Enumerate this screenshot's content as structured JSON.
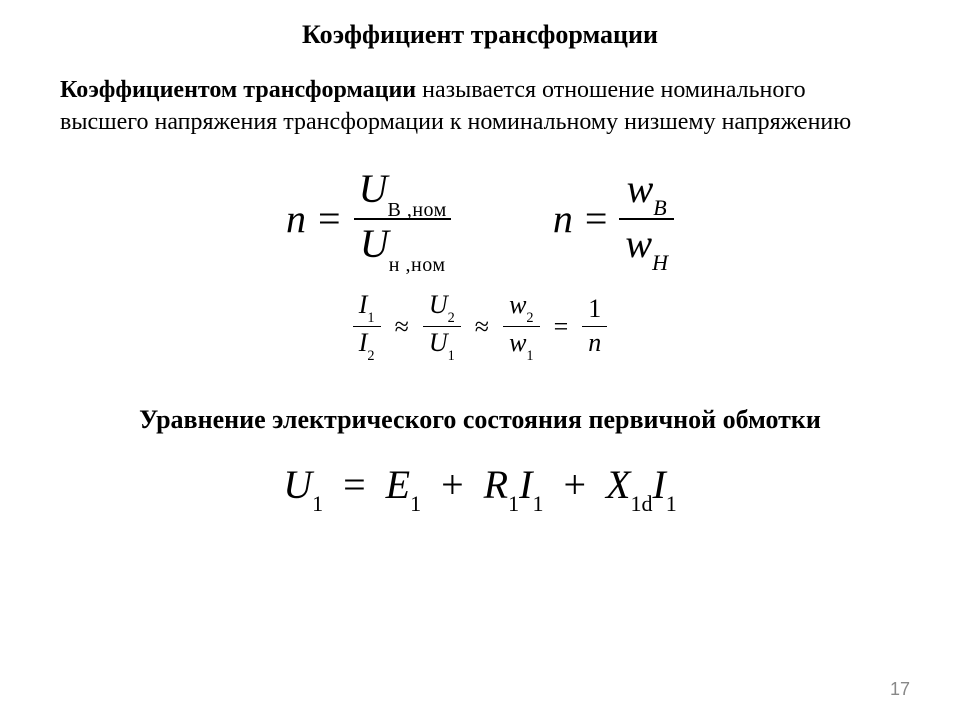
{
  "title": "Коэффициент трансформации",
  "definition": {
    "lead": "Коэффициентом трансформации",
    "body": " называется отношение номинального высшего напряжения трансформации к номинальному низшему напряжению"
  },
  "formula1": {
    "lhs": "n",
    "eq": "=",
    "num_var": "U",
    "num_sub": "В ,ном",
    "den_var": "U",
    "den_sub": "н ,ном"
  },
  "formula2": {
    "lhs": "n",
    "eq": "=",
    "num_var": "w",
    "num_sub": "B",
    "den_var": "w",
    "den_sub": "H"
  },
  "relation": {
    "f1_num": "I",
    "f1_num_sub": "1",
    "f1_den": "I",
    "f1_den_sub": "2",
    "op1": "≈",
    "f2_num": "U",
    "f2_num_sub": "2",
    "f2_den": "U",
    "f2_den_sub": "1",
    "op2": "≈",
    "f3_num": "w",
    "f3_num_sub": "2",
    "f3_den": "w",
    "f3_den_sub": "1",
    "op3": "=",
    "f4_num": "1",
    "f4_den": "n"
  },
  "subtitle": "Уравнение электрического состояния первичной обмотки",
  "state_equation": {
    "t1": "U",
    "s1": "1",
    "eq": "=",
    "t2": "E",
    "s2": "1",
    "plus": "+",
    "t3": "R",
    "s3": "1",
    "t4": "I",
    "s4": "1",
    "t5": "X",
    "s5": "1d",
    "t6": "I",
    "s6": "1"
  },
  "page_number": "17",
  "colors": {
    "bg": "#ffffff",
    "text": "#000000",
    "page_num": "#888888"
  }
}
